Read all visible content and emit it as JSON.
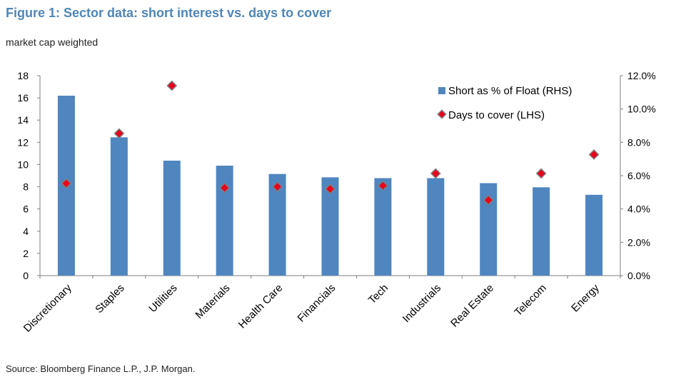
{
  "figure": {
    "title": "Figure 1: Sector data: short interest vs. days to cover",
    "subtitle": "market cap weighted",
    "source": "Source: Bloomberg Finance L.P., J.P. Morgan."
  },
  "colors": {
    "title": "#4f86b6",
    "bar": "#4f86bf",
    "marker_fill": "#e8001c",
    "marker_edge": "#7f7f7f",
    "axis": "#7f7f7f"
  },
  "chart_data": {
    "type": "bar",
    "title": "Figure 1: Sector data: short interest vs. days to cover",
    "subtitle": "market cap weighted",
    "categories": [
      "Discretionary",
      "Staples",
      "Utilities",
      "Materials",
      "Health Care",
      "Financials",
      "Tech",
      "Industrials",
      "Real Estate",
      "Telecom",
      "Energy"
    ],
    "series": [
      {
        "name": "Short as % of Float (RHS)",
        "type": "bar",
        "axis": "right",
        "values": [
          10.8,
          8.3,
          6.9,
          6.6,
          6.1,
          5.9,
          5.85,
          5.85,
          5.55,
          5.3,
          4.85
        ]
      },
      {
        "name": "Days to cover (LHS)",
        "type": "scatter",
        "axis": "left",
        "marker": "diamond",
        "values": [
          8.3,
          12.8,
          17.1,
          7.9,
          8.0,
          7.8,
          8.1,
          9.2,
          6.8,
          9.2,
          10.9
        ]
      }
    ],
    "y_left": {
      "min": 0,
      "max": 18,
      "step": 2,
      "ticks": [
        "0",
        "2",
        "4",
        "6",
        "8",
        "10",
        "12",
        "14",
        "16",
        "18"
      ]
    },
    "y_right": {
      "min": 0,
      "max": 12,
      "step": 2,
      "ticks": [
        "0.0%",
        "2.0%",
        "4.0%",
        "6.0%",
        "8.0%",
        "10.0%",
        "12.0%"
      ]
    },
    "grid": false,
    "legend_position": "top-right"
  }
}
